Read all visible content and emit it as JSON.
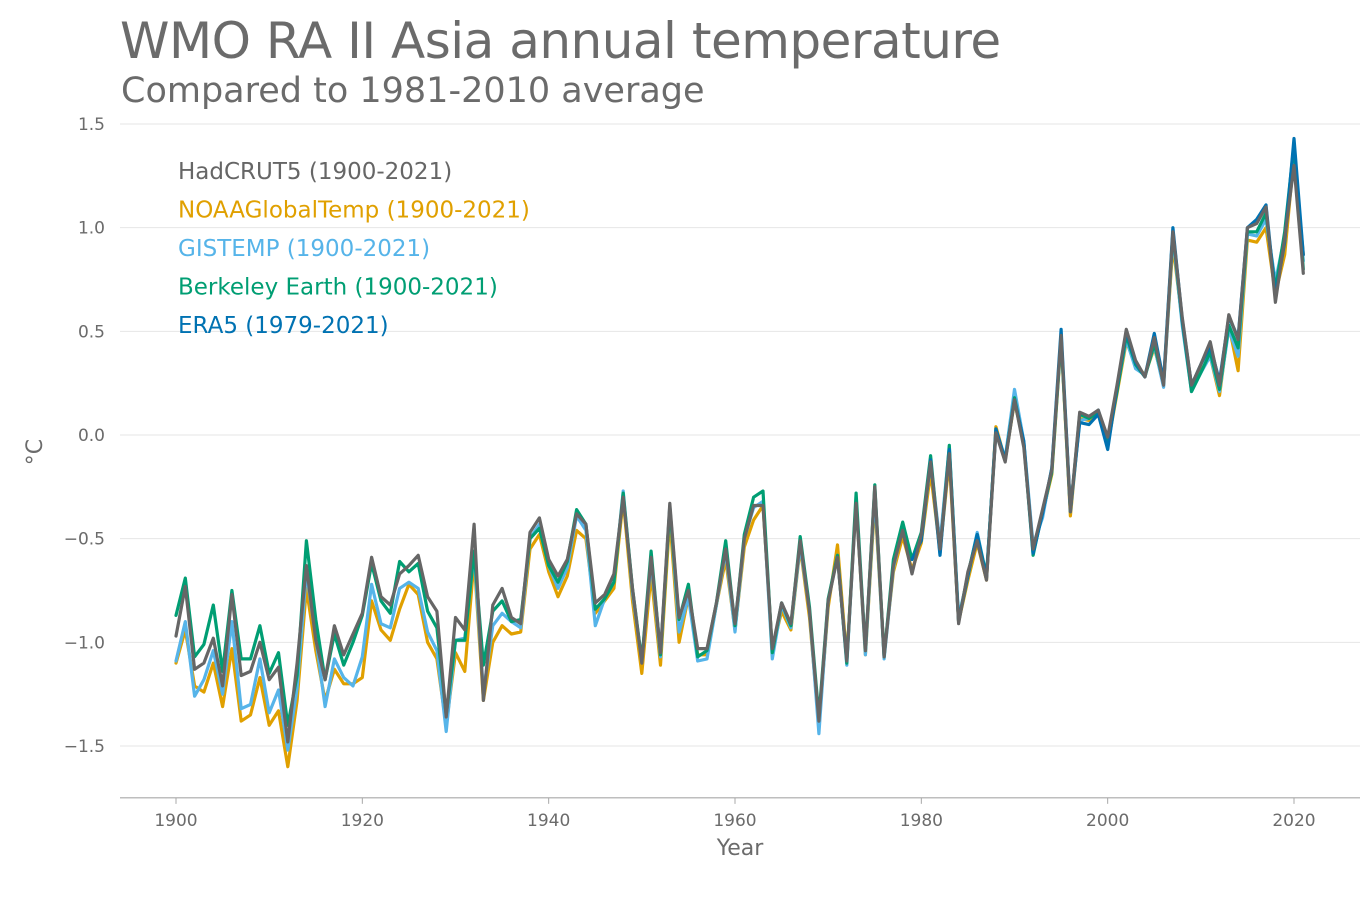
{
  "chart_data": {
    "type": "line",
    "title": "WMO RA II Asia annual temperature",
    "subtitle": "Compared to 1981-2010 average",
    "xlabel": "Year",
    "ylabel": "°C",
    "xlim": [
      1895,
      2025
    ],
    "ylim": [
      -1.75,
      1.5
    ],
    "xticks": [
      1900,
      1920,
      1940,
      1960,
      1980,
      2000,
      2020
    ],
    "xtick_labels": [
      "1900",
      "1920",
      "1940",
      "1960",
      "1980",
      "2000",
      "2020"
    ],
    "yticks": [
      1.5,
      1.0,
      0.5,
      0.0,
      -0.5,
      -1.0,
      -1.5
    ],
    "ytick_labels": [
      "1.5",
      "1.0",
      "0.5",
      "0.0",
      "−0.5",
      "−1.0",
      "−1.5"
    ],
    "grid": "horizontal",
    "legend_position": "top-left",
    "series": [
      {
        "name": "NOAAGlobalTemp (1900-2021)",
        "color": "#e0a000",
        "x_start": 1900,
        "values": [
          -1.1,
          -0.94,
          -1.21,
          -1.24,
          -1.1,
          -1.31,
          -1.03,
          -1.38,
          -1.35,
          -1.17,
          -1.4,
          -1.33,
          -1.6,
          -1.28,
          -0.74,
          -1.04,
          -1.28,
          -1.13,
          -1.2,
          -1.2,
          -1.17,
          -0.8,
          -0.94,
          -0.99,
          -0.84,
          -0.72,
          -0.77,
          -1.0,
          -1.08,
          -1.4,
          -1.05,
          -1.14,
          -0.6,
          -1.28,
          -1.0,
          -0.92,
          -0.96,
          -0.95,
          -0.55,
          -0.48,
          -0.66,
          -0.78,
          -0.68,
          -0.46,
          -0.5,
          -0.86,
          -0.8,
          -0.74,
          -0.31,
          -0.8,
          -1.15,
          -0.67,
          -1.11,
          -0.4,
          -1.0,
          -0.78,
          -1.06,
          -1.06,
          -0.82,
          -0.6,
          -0.94,
          -0.54,
          -0.41,
          -0.34,
          -1.04,
          -0.85,
          -0.94,
          -0.54,
          -0.88,
          -1.4,
          -0.83,
          -0.53,
          -1.08,
          -0.32,
          -1.06,
          -0.32,
          -1.06,
          -0.66,
          -0.49,
          -0.65,
          -0.52,
          -0.18,
          -0.56,
          -0.12,
          -0.9,
          -0.7,
          -0.52,
          -0.7,
          0.04,
          -0.12,
          0.16,
          -0.04,
          -0.55,
          -0.38,
          -0.19,
          0.46,
          -0.39,
          0.08,
          0.07,
          0.1,
          -0.05,
          0.2,
          0.45,
          0.34,
          0.29,
          0.42,
          0.25,
          0.92,
          0.55,
          0.22,
          0.31,
          0.38,
          0.19,
          0.53,
          0.31,
          0.94,
          0.93,
          1.0,
          0.68,
          0.87,
          1.35,
          0.87
        ]
      },
      {
        "name": "GISTEMP (1900-2021)",
        "color": "#56b4e9",
        "x_start": 1900,
        "values": [
          -1.09,
          -0.9,
          -1.26,
          -1.18,
          -1.04,
          -1.25,
          -0.9,
          -1.32,
          -1.3,
          -1.08,
          -1.34,
          -1.23,
          -1.52,
          -1.22,
          -0.66,
          -0.98,
          -1.31,
          -1.08,
          -1.17,
          -1.21,
          -1.07,
          -0.72,
          -0.91,
          -0.93,
          -0.74,
          -0.71,
          -0.74,
          -0.95,
          -1.04,
          -1.43,
          -0.99,
          -0.98,
          -0.57,
          -1.24,
          -0.92,
          -0.86,
          -0.9,
          -0.93,
          -0.5,
          -0.43,
          -0.63,
          -0.74,
          -0.64,
          -0.39,
          -0.46,
          -0.92,
          -0.79,
          -0.71,
          -0.27,
          -0.76,
          -1.09,
          -0.61,
          -1.07,
          -0.34,
          -0.95,
          -0.78,
          -1.09,
          -1.08,
          -0.82,
          -0.56,
          -0.95,
          -0.5,
          -0.35,
          -0.32,
          -1.08,
          -0.82,
          -0.93,
          -0.53,
          -0.85,
          -1.44,
          -0.8,
          -0.58,
          -1.11,
          -0.31,
          -1.06,
          -0.28,
          -1.08,
          -0.64,
          -0.45,
          -0.6,
          -0.5,
          -0.13,
          -0.52,
          -0.06,
          -0.88,
          -0.68,
          -0.47,
          -0.68,
          0.02,
          -0.11,
          0.22,
          -0.03,
          -0.53,
          -0.4,
          -0.16,
          0.47,
          -0.37,
          0.07,
          0.08,
          0.12,
          -0.03,
          0.22,
          0.46,
          0.32,
          0.29,
          0.43,
          0.23,
          0.96,
          0.53,
          0.21,
          0.3,
          0.38,
          0.21,
          0.51,
          0.38,
          0.97,
          0.96,
          1.04,
          0.74,
          0.96,
          1.39,
          0.84
        ]
      },
      {
        "name": "Berkeley Earth (1900-2021)",
        "color": "#009e73",
        "x_start": 1900,
        "values": [
          -0.87,
          -0.69,
          -1.07,
          -1.01,
          -0.82,
          -1.14,
          -0.75,
          -1.08,
          -1.08,
          -0.92,
          -1.15,
          -1.05,
          -1.4,
          -1.16,
          -0.51,
          -0.89,
          -1.18,
          -0.96,
          -1.11,
          -1.0,
          -0.87,
          -0.62,
          -0.8,
          -0.86,
          -0.61,
          -0.66,
          -0.62,
          -0.85,
          -0.93,
          -1.35,
          -0.99,
          -0.99,
          -0.56,
          -1.11,
          -0.85,
          -0.8,
          -0.9,
          -0.89,
          -0.5,
          -0.45,
          -0.63,
          -0.71,
          -0.61,
          -0.36,
          -0.43,
          -0.84,
          -0.79,
          -0.71,
          -0.28,
          -0.74,
          -1.09,
          -0.56,
          -1.06,
          -0.35,
          -0.89,
          -0.72,
          -1.07,
          -1.04,
          -0.81,
          -0.51,
          -0.92,
          -0.48,
          -0.3,
          -0.27,
          -1.05,
          -0.81,
          -0.92,
          -0.49,
          -0.83,
          -1.36,
          -0.79,
          -0.58,
          -1.1,
          -0.28,
          -1.04,
          -0.24,
          -1.07,
          -0.6,
          -0.42,
          -0.6,
          -0.47,
          -0.1,
          -0.57,
          -0.05,
          -0.9,
          -0.67,
          -0.48,
          -0.68,
          0.02,
          -0.12,
          0.18,
          -0.04,
          -0.58,
          -0.37,
          -0.18,
          0.47,
          -0.37,
          0.1,
          0.08,
          0.11,
          -0.03,
          0.21,
          0.48,
          0.34,
          0.28,
          0.44,
          0.25,
          0.98,
          0.55,
          0.21,
          0.3,
          0.4,
          0.22,
          0.53,
          0.42,
          0.98,
          0.98,
          1.07,
          0.7,
          0.98,
          1.4,
          0.8
        ]
      },
      {
        "name": "ERA5 (1979-2021)",
        "color": "#0072b2",
        "x_start": 1979,
        "values": [
          -0.6,
          -0.51,
          -0.12,
          -0.58,
          -0.07,
          -0.9,
          -0.68,
          -0.48,
          -0.69,
          0.03,
          -0.12,
          0.17,
          -0.03,
          -0.57,
          -0.38,
          -0.16,
          0.51,
          -0.36,
          0.06,
          0.05,
          0.1,
          -0.07,
          0.23,
          0.5,
          0.35,
          0.28,
          0.49,
          0.26,
          1.0,
          0.56,
          0.24,
          0.34,
          0.43,
          0.26,
          0.57,
          0.47,
          1.0,
          1.04,
          1.11,
          0.67,
          0.93,
          1.43,
          0.87
        ]
      },
      {
        "name": "HadCRUT5 (1900-2021)",
        "color": "#666666",
        "x_start": 1900,
        "values": [
          -0.97,
          -0.73,
          -1.13,
          -1.1,
          -0.98,
          -1.21,
          -0.77,
          -1.16,
          -1.14,
          -1.0,
          -1.18,
          -1.12,
          -1.48,
          -1.1,
          -0.63,
          -0.99,
          -1.18,
          -0.92,
          -1.06,
          -0.96,
          -0.86,
          -0.59,
          -0.78,
          -0.82,
          -0.67,
          -0.63,
          -0.58,
          -0.78,
          -0.85,
          -1.36,
          -0.88,
          -0.94,
          -0.43,
          -1.28,
          -0.82,
          -0.74,
          -0.88,
          -0.91,
          -0.47,
          -0.4,
          -0.6,
          -0.68,
          -0.6,
          -0.38,
          -0.43,
          -0.81,
          -0.77,
          -0.67,
          -0.3,
          -0.74,
          -1.1,
          -0.59,
          -1.05,
          -0.33,
          -0.88,
          -0.75,
          -1.03,
          -1.03,
          -0.81,
          -0.55,
          -0.91,
          -0.5,
          -0.34,
          -0.34,
          -1.03,
          -0.81,
          -0.91,
          -0.51,
          -0.85,
          -1.38,
          -0.8,
          -0.59,
          -1.09,
          -0.33,
          -1.04,
          -0.25,
          -1.07,
          -0.63,
          -0.46,
          -0.67,
          -0.48,
          -0.13,
          -0.55,
          -0.09,
          -0.91,
          -0.66,
          -0.51,
          -0.7,
          0.01,
          -0.13,
          0.17,
          -0.06,
          -0.55,
          -0.36,
          -0.17,
          0.48,
          -0.37,
          0.11,
          0.09,
          0.12,
          -0.01,
          0.24,
          0.51,
          0.36,
          0.28,
          0.47,
          0.24,
          0.98,
          0.57,
          0.24,
          0.34,
          0.45,
          0.24,
          0.58,
          0.46,
          1.0,
          1.02,
          1.1,
          0.64,
          0.95,
          1.3,
          0.78
        ]
      }
    ],
    "legend": [
      {
        "label": "HadCRUT5 (1900-2021)",
        "color": "#666666"
      },
      {
        "label": "NOAAGlobalTemp (1900-2021)",
        "color": "#e0a000"
      },
      {
        "label": "GISTEMP (1900-2021)",
        "color": "#56b4e9"
      },
      {
        "label": "Berkeley Earth (1900-2021)",
        "color": "#009e73"
      },
      {
        "label": "ERA5 (1979-2021)",
        "color": "#0072b2"
      }
    ],
    "colors": {
      "text": "#6b6b6b",
      "grid": "#e6e6e6",
      "axis": "#a8a8a8"
    }
  }
}
